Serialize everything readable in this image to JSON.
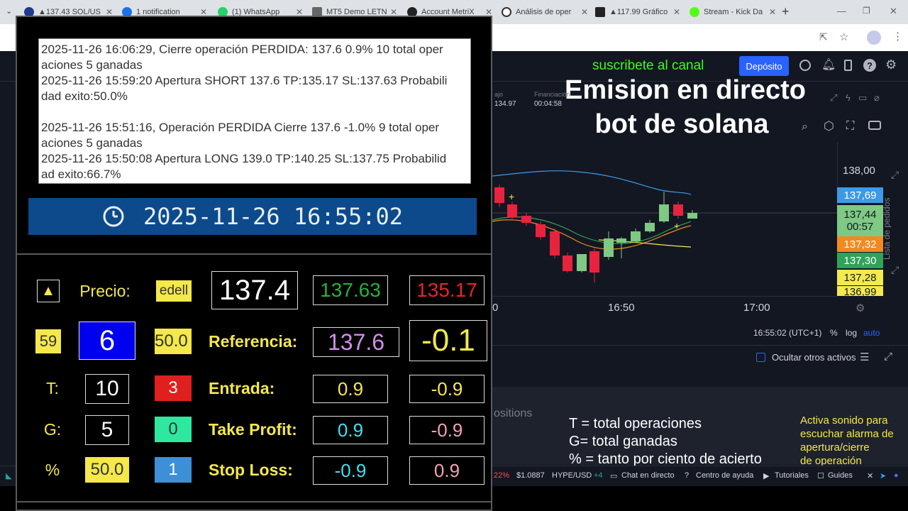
{
  "browser": {
    "tabs": [
      {
        "label": "▲137.43 SOL/US"
      },
      {
        "label": "1 notification"
      },
      {
        "label": "(1) WhatsApp"
      },
      {
        "label": "MT5 Demo LETN"
      },
      {
        "label": "Account MetriX"
      },
      {
        "label": "Análisis de oper"
      },
      {
        "label": "▲117.99 Gráfico"
      },
      {
        "label": "Stream - Kick Da"
      }
    ],
    "new_tab": "+",
    "colors": {
      "tab_bar": "#dee1e6",
      "active": "#ffffff"
    }
  },
  "platform": {
    "promo": "suscribete al canal",
    "deposit_button": "Depósito",
    "stream_title_line1": "Emision en directo",
    "stream_title_line2": "bot de solana",
    "header_stats": [
      {
        "label": "ajo",
        "value": "134.97"
      },
      {
        "label": "Financiación",
        "value": "00:04:58"
      }
    ],
    "price_axis": {
      "top_label": "138,00"
    },
    "price_tags": [
      {
        "value": "137,69",
        "bg": "#3c9ae8",
        "fg": "#ffffff"
      },
      {
        "value": "137,44",
        "sub": "00:57",
        "bg": "#7ec983",
        "fg": "#131722"
      },
      {
        "value": "137,32",
        "bg": "#f28a22",
        "fg": "#ffffff"
      },
      {
        "value": "137,30",
        "bg": "#2fa35a",
        "fg": "#ffffff"
      },
      {
        "value": "137,28",
        "bg": "#f4ea4c",
        "fg": "#131722"
      },
      {
        "value": "136,99",
        "bg": "#f4ea4c",
        "fg": "#131722"
      }
    ],
    "time_axis": [
      "0",
      "16:50",
      "17:00"
    ],
    "status_line": {
      "time": "16:55:02 (UTC+1)",
      "percent": "%",
      "log": "log",
      "auto": "auto"
    },
    "hide_assets": "Ocultar otros activos",
    "side_label": "Lista de pedidos",
    "positions_partial": "ositions",
    "legend": [
      "T = total operaciones",
      "G= total ganadas",
      "% = tanto por ciento de acierto"
    ],
    "sound_note": [
      "Activa sonido para",
      "escuchar alarma de",
      "apertura/cierre",
      "de operación"
    ],
    "bottom_bar": {
      "pct": "22%",
      "price": "$1.0887",
      "pair": "HYPE/USD",
      "plus": "+4",
      "chat": "Chat en directo",
      "help": "Centro de ayuda",
      "tutorials": "Tutoriales",
      "guides": "Guides"
    }
  },
  "bot": {
    "log_lines": [
      "2025-11-26 16:06:29, Cierre operación PERDIDA: 137.6 0.9% 10 total oper",
      "aciones 5 ganadas",
      "2025-11-26 15:59:20 Apertura SHORT 137.6 TP:135.17 SL:137.63 Probabili",
      "dad exito:50.0%",
      "",
      "2025-11-26 15:51:16, Operación PERDIDA Cierre 137.6  -1.0% 9 total oper",
      "aciones 5 ganadas",
      "2025-11-26 15:50:08 Apertura LONG 139.0 TP:140.25 SL:137.75 Probabilid",
      "ad exito:66.7%"
    ],
    "clock": "2025-11-26 16:55:02",
    "grid": {
      "up_arrow": "▲",
      "precio_label": "Precio:",
      "edell": "edell",
      "price": "137.4",
      "sl_price": "137.63",
      "tp_price": "135.17",
      "n59": "59",
      "n6": "6",
      "n50": "50.0",
      "referencia_label": "Referencia:",
      "referencia": "137.6",
      "ref_diff": "-0.1",
      "t_label": "T:",
      "t_value": "10",
      "red_value": "3",
      "entrada_label": "Entrada:",
      "entrada_a": "0.9",
      "entrada_b": "-0.9",
      "g_label": "G:",
      "g_value": "5",
      "green_value": "0",
      "tp_label": "Take Profit:",
      "tp_a": "0.9",
      "tp_b": "-0.9",
      "pct_label": "%",
      "pct_value": "50.0",
      "blue_value": "1",
      "sl_label": "Stop Loss:",
      "sl_a": "-0.9",
      "sl_b": "0.9"
    }
  }
}
